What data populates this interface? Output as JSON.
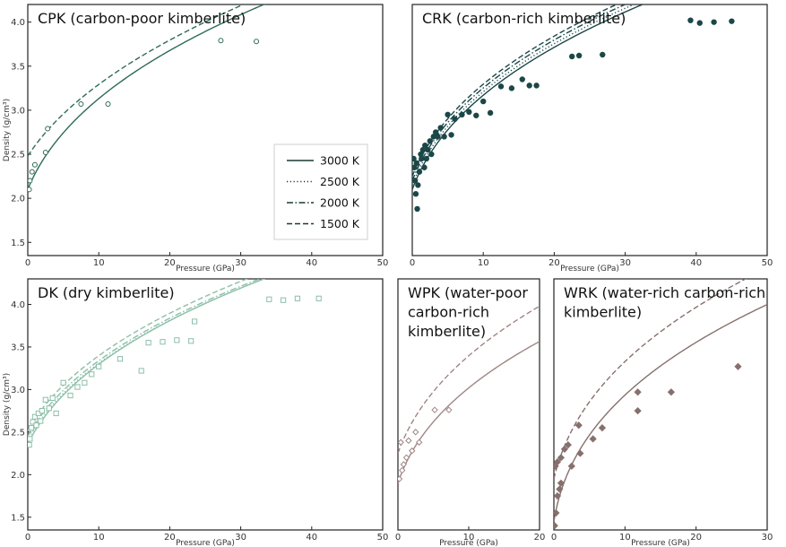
{
  "figure": {
    "ylabel": "Density (g/cm³)",
    "xlabel": "Pressure (GPa)",
    "legend": {
      "placement": "inside-right of first panel",
      "entries": [
        {
          "label": "3000 K",
          "style": "solid"
        },
        {
          "label": "2500 K",
          "style": "dotted"
        },
        {
          "label": "2000 K",
          "style": "dashdot"
        },
        {
          "label": "1500 K",
          "style": "dashed"
        }
      ]
    }
  },
  "chart_data": [
    {
      "type": "line",
      "id": "cpk",
      "title": "CPK (carbon-poor kimberlite)",
      "color": "#2e6b57",
      "xlim": [
        0,
        50
      ],
      "ylim": [
        1.35,
        4.2
      ],
      "xticks": [
        "0",
        "10",
        "20",
        "30",
        "40",
        "50"
      ],
      "yticks": [
        "1.5",
        "2.0",
        "2.5",
        "3.0",
        "3.5",
        "4.0"
      ],
      "xlabel": "Pressure (GPa)",
      "ylabel": "Density (g/cm³)",
      "series": [
        {
          "name": "3000 K",
          "style": "solid",
          "rho0": 2.1,
          "k0": 10.5,
          "kp": 4.3
        },
        {
          "name": "1500 K",
          "style": "dashed",
          "rho0": 2.48,
          "k0": 20,
          "kp": 4.0
        }
      ],
      "points": {
        "marker": "circle",
        "filled": false,
        "sets": [
          {
            "name": "3000 K",
            "x": [
              0.2,
              0.6,
              1.0,
              2.5,
              11.3,
              32.2
            ],
            "y": [
              2.1,
              2.3,
              2.38,
              2.52,
              3.07,
              3.78
            ]
          },
          {
            "name": "1500 K",
            "x": [
              0.3,
              2.8,
              7.5,
              27.2
            ],
            "y": [
              2.2,
              2.79,
              3.07,
              3.79
            ]
          }
        ]
      }
    },
    {
      "type": "line",
      "id": "crk",
      "title": "CRK (carbon-rich kimberlite)",
      "color": "#1c4749",
      "xlim": [
        0,
        50
      ],
      "ylim": [
        1.35,
        4.2
      ],
      "xticks": [
        "0",
        "10",
        "20",
        "30",
        "40",
        "50"
      ],
      "yticks": [],
      "xlabel": "Pressure (GPa)",
      "ylabel": "",
      "series": [
        {
          "name": "3000 K",
          "style": "solid",
          "rho0": 2.1,
          "k0": 9.5,
          "kp": 4.5
        },
        {
          "name": "2500 K",
          "style": "dotted",
          "rho0": 2.15,
          "k0": 10,
          "kp": 4.5
        },
        {
          "name": "2000 K",
          "style": "dashdot",
          "rho0": 2.2,
          "k0": 10.5,
          "kp": 4.5
        },
        {
          "name": "1500 K",
          "style": "dashed",
          "rho0": 2.25,
          "k0": 11,
          "kp": 4.5
        }
      ],
      "points": {
        "marker": "circle",
        "filled": true,
        "sets": [
          {
            "name": "all",
            "x": [
              0.2,
              0.3,
              0.4,
              0.5,
              0.6,
              0.7,
              0.8,
              1.0,
              1.2,
              1.3,
              1.5,
              1.7,
              1.8,
              2.0,
              2.2,
              2.5,
              2.7,
              3.0,
              3.3,
              3.6,
              4.0,
              4.5,
              5.0,
              5.5,
              6.0,
              7.0,
              8.0,
              9.0,
              10.0,
              11.0,
              12.5,
              14.0,
              15.5,
              16.5,
              17.5,
              22.5,
              23.5,
              26.8,
              39.2,
              40.5,
              42.5,
              45.0
            ],
            "y": [
              2.45,
              2.35,
              2.2,
              2.05,
              2.4,
              1.88,
              2.15,
              2.3,
              2.5,
              2.45,
              2.55,
              2.35,
              2.6,
              2.45,
              2.55,
              2.65,
              2.5,
              2.7,
              2.75,
              2.7,
              2.8,
              2.7,
              2.95,
              2.72,
              2.9,
              2.95,
              2.98,
              2.94,
              3.1,
              2.97,
              3.27,
              3.25,
              3.35,
              3.28,
              3.28,
              3.61,
              3.62,
              3.63,
              4.02,
              3.99,
              4.0,
              4.01
            ]
          }
        ]
      }
    },
    {
      "type": "line",
      "id": "dk",
      "title": "DK (dry kimberlite)",
      "color": "#8cbfa9",
      "xlim": [
        0,
        50
      ],
      "ylim": [
        1.35,
        4.3
      ],
      "xticks": [
        "0",
        "10",
        "20",
        "30",
        "40",
        "50"
      ],
      "yticks": [
        "1.5",
        "2.0",
        "2.5",
        "3.0",
        "3.5",
        "4.0"
      ],
      "xlabel": "Pressure (GPa)",
      "ylabel": "Density (g/cm³)",
      "series": [
        {
          "name": "3000 K",
          "style": "solid",
          "rho0": 2.36,
          "k0": 14,
          "kp": 4.5
        },
        {
          "name": "2500 K",
          "style": "dotted",
          "rho0": 2.4,
          "k0": 15,
          "kp": 4.5
        },
        {
          "name": "2000 K",
          "style": "dashdot",
          "rho0": 2.45,
          "k0": 16,
          "kp": 4.5
        },
        {
          "name": "1500 K",
          "style": "dashed",
          "rho0": 2.52,
          "k0": 17,
          "kp": 4.5
        }
      ],
      "points": {
        "marker": "square",
        "filled": false,
        "sets": [
          {
            "name": "all",
            "x": [
              0.2,
              0.3,
              0.5,
              0.7,
              1.0,
              1.2,
              1.5,
              1.8,
              2.0,
              2.5,
              3.0,
              3.5,
              4.0,
              5.0,
              6.0,
              7.0,
              8.0,
              9.0,
              10.0,
              13.0,
              16.0,
              17.0,
              19.0,
              21.0,
              23.0,
              23.5,
              34.0,
              36.0,
              38.0,
              41.0
            ],
            "y": [
              2.35,
              2.42,
              2.55,
              2.62,
              2.68,
              2.58,
              2.72,
              2.63,
              2.75,
              2.88,
              2.78,
              2.9,
              2.72,
              3.08,
              2.93,
              3.03,
              3.08,
              3.18,
              3.27,
              3.36,
              3.22,
              3.55,
              3.56,
              3.58,
              3.57,
              3.8,
              4.06,
              4.05,
              4.07,
              4.07
            ]
          }
        ]
      }
    },
    {
      "type": "line",
      "id": "wpk",
      "title": "WPK (water-poor carbon-rich kimberlite)",
      "title_lines": [
        "WPK (water-poor",
        "carbon-rich",
        "kimberlite)"
      ],
      "color": "#a08584",
      "xlim": [
        0,
        20
      ],
      "ylim": [
        1.35,
        4.3
      ],
      "xticks": [
        "0",
        "10",
        "20"
      ],
      "yticks": [],
      "xlabel": "Pressure (GPa)",
      "ylabel": "",
      "series": [
        {
          "name": "3000 K",
          "style": "solid",
          "rho0": 1.9,
          "k0": 7.5,
          "kp": 4.5
        },
        {
          "name": "1500 K",
          "style": "dashed",
          "rho0": 2.25,
          "k0": 9.5,
          "kp": 4.5
        }
      ],
      "points": {
        "marker": "diamond",
        "filled": false,
        "sets": [
          {
            "name": "all",
            "x": [
              0.2,
              0.4,
              0.6,
              0.8,
              1.2,
              1.5,
              2.0,
              2.5,
              3.0,
              5.2,
              7.2
            ],
            "y": [
              1.95,
              2.38,
              2.05,
              2.12,
              2.2,
              2.4,
              2.28,
              2.5,
              2.38,
              2.76,
              2.76
            ]
          }
        ]
      }
    },
    {
      "type": "line",
      "id": "wrk",
      "title": "WRK (water-rich carbon-rich kimberlite)",
      "title_lines": [
        "WRK (water-rich carbon-rich",
        "kimberlite)"
      ],
      "color": "#86706d",
      "xlim": [
        0,
        30
      ],
      "ylim": [
        1.35,
        4.3
      ],
      "xticks": [
        "0",
        "10",
        "20",
        "30"
      ],
      "yticks": [],
      "xlabel": "Pressure (GPa)",
      "ylabel": "",
      "series": [
        {
          "name": "3000 K",
          "style": "solid",
          "rho0": 1.45,
          "k0": 2.8,
          "kp": 4.5
        },
        {
          "name": "1500 K",
          "style": "dashed",
          "rho0": 1.95,
          "k0": 5.5,
          "kp": 4.5
        }
      ],
      "points": {
        "marker": "diamond",
        "filled": true,
        "sets": [
          {
            "name": "3000 K",
            "x": [
              0.1,
              0.3,
              0.5,
              0.8,
              1.0,
              2.5,
              3.7,
              5.5,
              6.8,
              11.8,
              16.5,
              25.9
            ],
            "y": [
              1.4,
              1.55,
              1.75,
              1.83,
              1.9,
              2.1,
              2.25,
              2.42,
              2.55,
              2.75,
              2.97,
              3.27
            ]
          },
          {
            "name": "1500 K",
            "x": [
              0.2,
              0.5,
              1.0,
              1.5,
              2.0,
              3.5,
              11.8
            ],
            "y": [
              2.1,
              2.15,
              2.2,
              2.3,
              2.35,
              2.58,
              2.97
            ]
          }
        ]
      }
    }
  ]
}
